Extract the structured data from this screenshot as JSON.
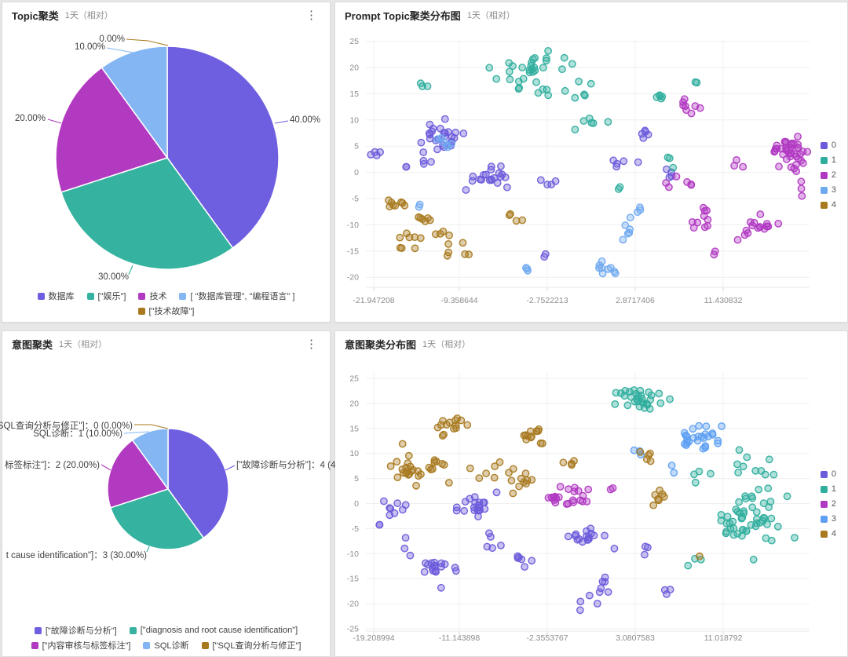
{
  "panels": [
    {
      "id": "topic-pie",
      "title": "Topic聚类",
      "subtitle": "1天（相对）",
      "menu_icon": "kebab-menu",
      "chart_data": {
        "type": "pie",
        "title": "Topic聚类",
        "slices": [
          {
            "label": "数据库",
            "value": 40,
            "callout": "40.00%",
            "color": "#6e5ee0"
          },
          {
            "label": "[\"娱乐\"]",
            "value": 30,
            "callout": "30.00%",
            "color": "#35b3a0"
          },
          {
            "label": "技术",
            "value": 20,
            "callout": "20.00%",
            "color": "#b23ac0"
          },
          {
            "label": "[ \"数据库管理\", \"编程语言\" ]",
            "value": 10,
            "callout": "10.00%",
            "color": "#84b6f4"
          },
          {
            "label": "[\"技术故障\"]",
            "value": 0,
            "callout": "0.00%",
            "color": "#a8791f"
          }
        ],
        "legend_rows": [
          [
            0,
            1,
            2,
            3
          ],
          [
            4
          ]
        ]
      }
    },
    {
      "id": "prompt-topic-scatter",
      "title": "Prompt Topic聚类分布图",
      "subtitle": "1天（相对）",
      "chart_data": {
        "type": "scatter",
        "x_ticks": {
          "labels": [
            "-21.947208",
            "-9.358644",
            "-2.7522213",
            "2.8717406",
            "11.430832"
          ],
          "values": [
            -21.947208,
            -9.358644,
            -2.7522213,
            2.8717406,
            11.430832
          ]
        },
        "y_ticks": [
          25,
          20,
          15,
          10,
          5,
          0,
          -5,
          -10,
          -15,
          -20
        ],
        "legend": [
          "0",
          "1",
          "2",
          "3",
          "4"
        ],
        "cluster_format": "[x_center, y_center, point_count, x_spread_frac_of_plot_width, y_spread_data_units]",
        "series": [
          {
            "name": "0",
            "color": "#6b5bdb",
            "clusters": [
              [
                -12.4,
                6.5,
                26,
                0.03,
                1.5
              ],
              [
                -21.8,
                3.2,
                4,
                0.01,
                0.5
              ],
              [
                -14.0,
                2.3,
                3,
                0.01,
                0.7
              ],
              [
                -7.0,
                -0.6,
                20,
                0.028,
                1.0
              ],
              [
                -2.7,
                -1.8,
                4,
                0.012,
                0.4
              ],
              [
                2.0,
                1.8,
                5,
                0.016,
                0.9
              ],
              [
                3.6,
                7.3,
                5,
                0.013,
                0.5
              ],
              [
                6.4,
                0.5,
                4,
                0.008,
                1.6
              ],
              [
                -2.9,
                -16.0,
                2,
                0.007,
                0.4
              ],
              [
                -17.3,
                1.4,
                2,
                0.006,
                0.4
              ]
            ]
          },
          {
            "name": "1",
            "color": "#2fae9e",
            "clusters": [
              [
                -3.5,
                19.5,
                32,
                0.045,
                1.8
              ],
              [
                -1.2,
                15.3,
                7,
                0.028,
                1.0
              ],
              [
                -14.2,
                16.2,
                3,
                0.008,
                0.5
              ],
              [
                0.5,
                9.8,
                6,
                0.02,
                0.8
              ],
              [
                5.0,
                14.4,
                5,
                0.011,
                0.4
              ],
              [
                8.8,
                17.0,
                2,
                0.005,
                0.3
              ],
              [
                2.0,
                -3.0,
                2,
                0.006,
                0.5
              ],
              [
                6.3,
                3.0,
                3,
                0.007,
                1.1
              ]
            ]
          },
          {
            "name": "2",
            "color": "#b138c2",
            "clusters": [
              [
                8.0,
                12.6,
                8,
                0.014,
                0.5
              ],
              [
                17.8,
                4.0,
                38,
                0.02,
                1.2
              ],
              [
                7.2,
                -2.0,
                6,
                0.014,
                0.8
              ],
              [
                9.2,
                -9.8,
                10,
                0.018,
                1.2
              ],
              [
                14.7,
                -10.3,
                16,
                0.022,
                0.9
              ],
              [
                10.7,
                -15.5,
                2,
                0.006,
                0.4
              ],
              [
                13.0,
                1.0,
                3,
                0.008,
                0.6
              ],
              [
                19.0,
                -3.5,
                3,
                0.008,
                0.8
              ]
            ]
          },
          {
            "name": "3",
            "color": "#6fa9f0",
            "clusters": [
              [
                -11.3,
                5.6,
                6,
                0.018,
                1.0
              ],
              [
                2.4,
                -11.6,
                5,
                0.01,
                1.4
              ],
              [
                1.0,
                -18.0,
                9,
                0.016,
                0.8
              ],
              [
                -4.5,
                -18.4,
                3,
                0.009,
                0.5
              ],
              [
                3.0,
                -7.4,
                4,
                0.011,
                0.6
              ],
              [
                -15.8,
                -6.6,
                2,
                0.007,
                0.4
              ]
            ]
          },
          {
            "name": "4",
            "color": "#a87a1e",
            "clusters": [
              [
                -18.6,
                -6.4,
                8,
                0.013,
                0.5
              ],
              [
                -14.6,
                -9.2,
                6,
                0.013,
                0.7
              ],
              [
                -16.5,
                -13.4,
                8,
                0.014,
                0.8
              ],
              [
                -9.5,
                -14.6,
                6,
                0.016,
                0.7
              ],
              [
                -5.5,
                -8.8,
                4,
                0.012,
                0.7
              ],
              [
                -11.5,
                -11.8,
                4,
                0.012,
                0.7
              ]
            ]
          }
        ]
      }
    },
    {
      "id": "intent-pie",
      "title": "意图聚类",
      "subtitle": "1天（相对）",
      "menu_icon": "kebab-menu",
      "chart_data": {
        "type": "pie",
        "title": "意图聚类",
        "slices": [
          {
            "label": "[\"故障诊断与分析\"]",
            "value": 40,
            "callout": "[\"故障诊断与分析\"]：4 (4",
            "color": "#6e5ee0"
          },
          {
            "label": "[\"diagnosis and root cause identification\"]",
            "value": 30,
            "callout": "t cause identification\"]：3 (30.00%)",
            "color": "#35b3a0"
          },
          {
            "label": "[\"内容审核与标签标注\"]",
            "value": 20,
            "callout": "标签标注\"]：2 (20.00%)",
            "color": "#b23ac0"
          },
          {
            "label": "SQL诊断",
            "value": 10,
            "callout": "SQL诊断：1 (10.00%)",
            "color": "#84b6f4"
          },
          {
            "label": "[\"SQL查询分析与修正\"]",
            "value": 0,
            "callout": "'SQL查询分析与修正\"]：0 (0.00%)",
            "color": "#a8791f"
          }
        ],
        "legend_rows": [
          [
            0,
            1
          ],
          [
            2,
            3,
            4
          ]
        ]
      }
    },
    {
      "id": "intent-scatter",
      "title": "意图聚类分布图",
      "subtitle": "1天（相对）",
      "chart_data": {
        "type": "scatter",
        "x_ticks": {
          "labels": [
            "-19.208994",
            "-11.143898",
            "-2.3553767",
            "3.0807583",
            "11.018792"
          ],
          "values": [
            -19.208994,
            -11.143898,
            -2.3553767,
            3.0807583,
            11.018792
          ]
        },
        "y_ticks": [
          25,
          20,
          15,
          10,
          5,
          0,
          -5,
          -10,
          -15,
          -20,
          -25
        ],
        "legend": [
          "0",
          "1",
          "2",
          "3",
          "4"
        ],
        "cluster_format": "[x_center, y_center, point_count, x_spread_frac_of_plot_width, y_spread_data_units]",
        "series": [
          {
            "name": "0",
            "color": "#6b5bdb",
            "clusters": [
              [
                -9.3,
                -0.6,
                20,
                0.028,
                1.2
              ],
              [
                -17.4,
                -1.7,
                8,
                0.016,
                1.0
              ],
              [
                0.2,
                -7.0,
                16,
                0.024,
                0.9
              ],
              [
                -13.4,
                -12.5,
                13,
                0.013,
                0.8
              ],
              [
                -16.0,
                -8.0,
                3,
                0.01,
                1.4
              ],
              [
                -12.0,
                -14.0,
                4,
                0.014,
                1.2
              ],
              [
                -8.0,
                -8.5,
                5,
                0.018,
                1.5
              ],
              [
                1.1,
                -16.9,
                6,
                0.018,
                1.4
              ],
              [
                4.3,
                -9.6,
                3,
                0.008,
                0.5
              ],
              [
                6.0,
                -17.3,
                3,
                0.007,
                0.5
              ],
              [
                0.3,
                -20.0,
                4,
                0.016,
                1.0
              ],
              [
                -19.0,
                -4.5,
                2,
                0.006,
                0.5
              ],
              [
                -5.0,
                -11.5,
                6,
                0.02,
                0.8
              ]
            ]
          },
          {
            "name": "1",
            "color": "#2fae9e",
            "clusters": [
              [
                3.1,
                21.0,
                30,
                0.03,
                1.2
              ],
              [
                13.4,
                -3.3,
                52,
                0.042,
                3.0
              ],
              [
                12.5,
                8.0,
                10,
                0.035,
                2.0
              ],
              [
                9.0,
                5.5,
                4,
                0.01,
                1.2
              ],
              [
                8.7,
                -11.3,
                3,
                0.009,
                0.5
              ]
            ]
          },
          {
            "name": "2",
            "color": "#b138c2",
            "clusters": [
              [
                -1.1,
                1.6,
                22,
                0.024,
                1.1
              ],
              [
                1.5,
                2.5,
                2,
                0.006,
                0.5
              ]
            ]
          },
          {
            "name": "3",
            "color": "#5d9ff2",
            "clusters": [
              [
                8.8,
                13.3,
                26,
                0.028,
                1.7
              ],
              [
                3.2,
                10.5,
                3,
                0.008,
                0.4
              ],
              [
                6.5,
                7.0,
                2,
                0.006,
                0.6
              ]
            ]
          },
          {
            "name": "4",
            "color": "#a8791f",
            "clusters": [
              [
                -15.2,
                7.2,
                30,
                0.038,
                1.8
              ],
              [
                -11.8,
                15.4,
                14,
                0.02,
                1.2
              ],
              [
                -3.6,
                13.5,
                12,
                0.018,
                0.8
              ],
              [
                -7.0,
                6.5,
                10,
                0.028,
                1.5
              ],
              [
                4.0,
                9.7,
                5,
                0.012,
                0.6
              ],
              [
                -5.5,
                4.0,
                6,
                0.018,
                1.2
              ],
              [
                -1.0,
                7.5,
                4,
                0.014,
                1.0
              ],
              [
                5.2,
                1.1,
                7,
                0.013,
                1.0
              ],
              [
                8.9,
                -11.0,
                1,
                0.004,
                0.3
              ]
            ]
          }
        ]
      }
    }
  ]
}
